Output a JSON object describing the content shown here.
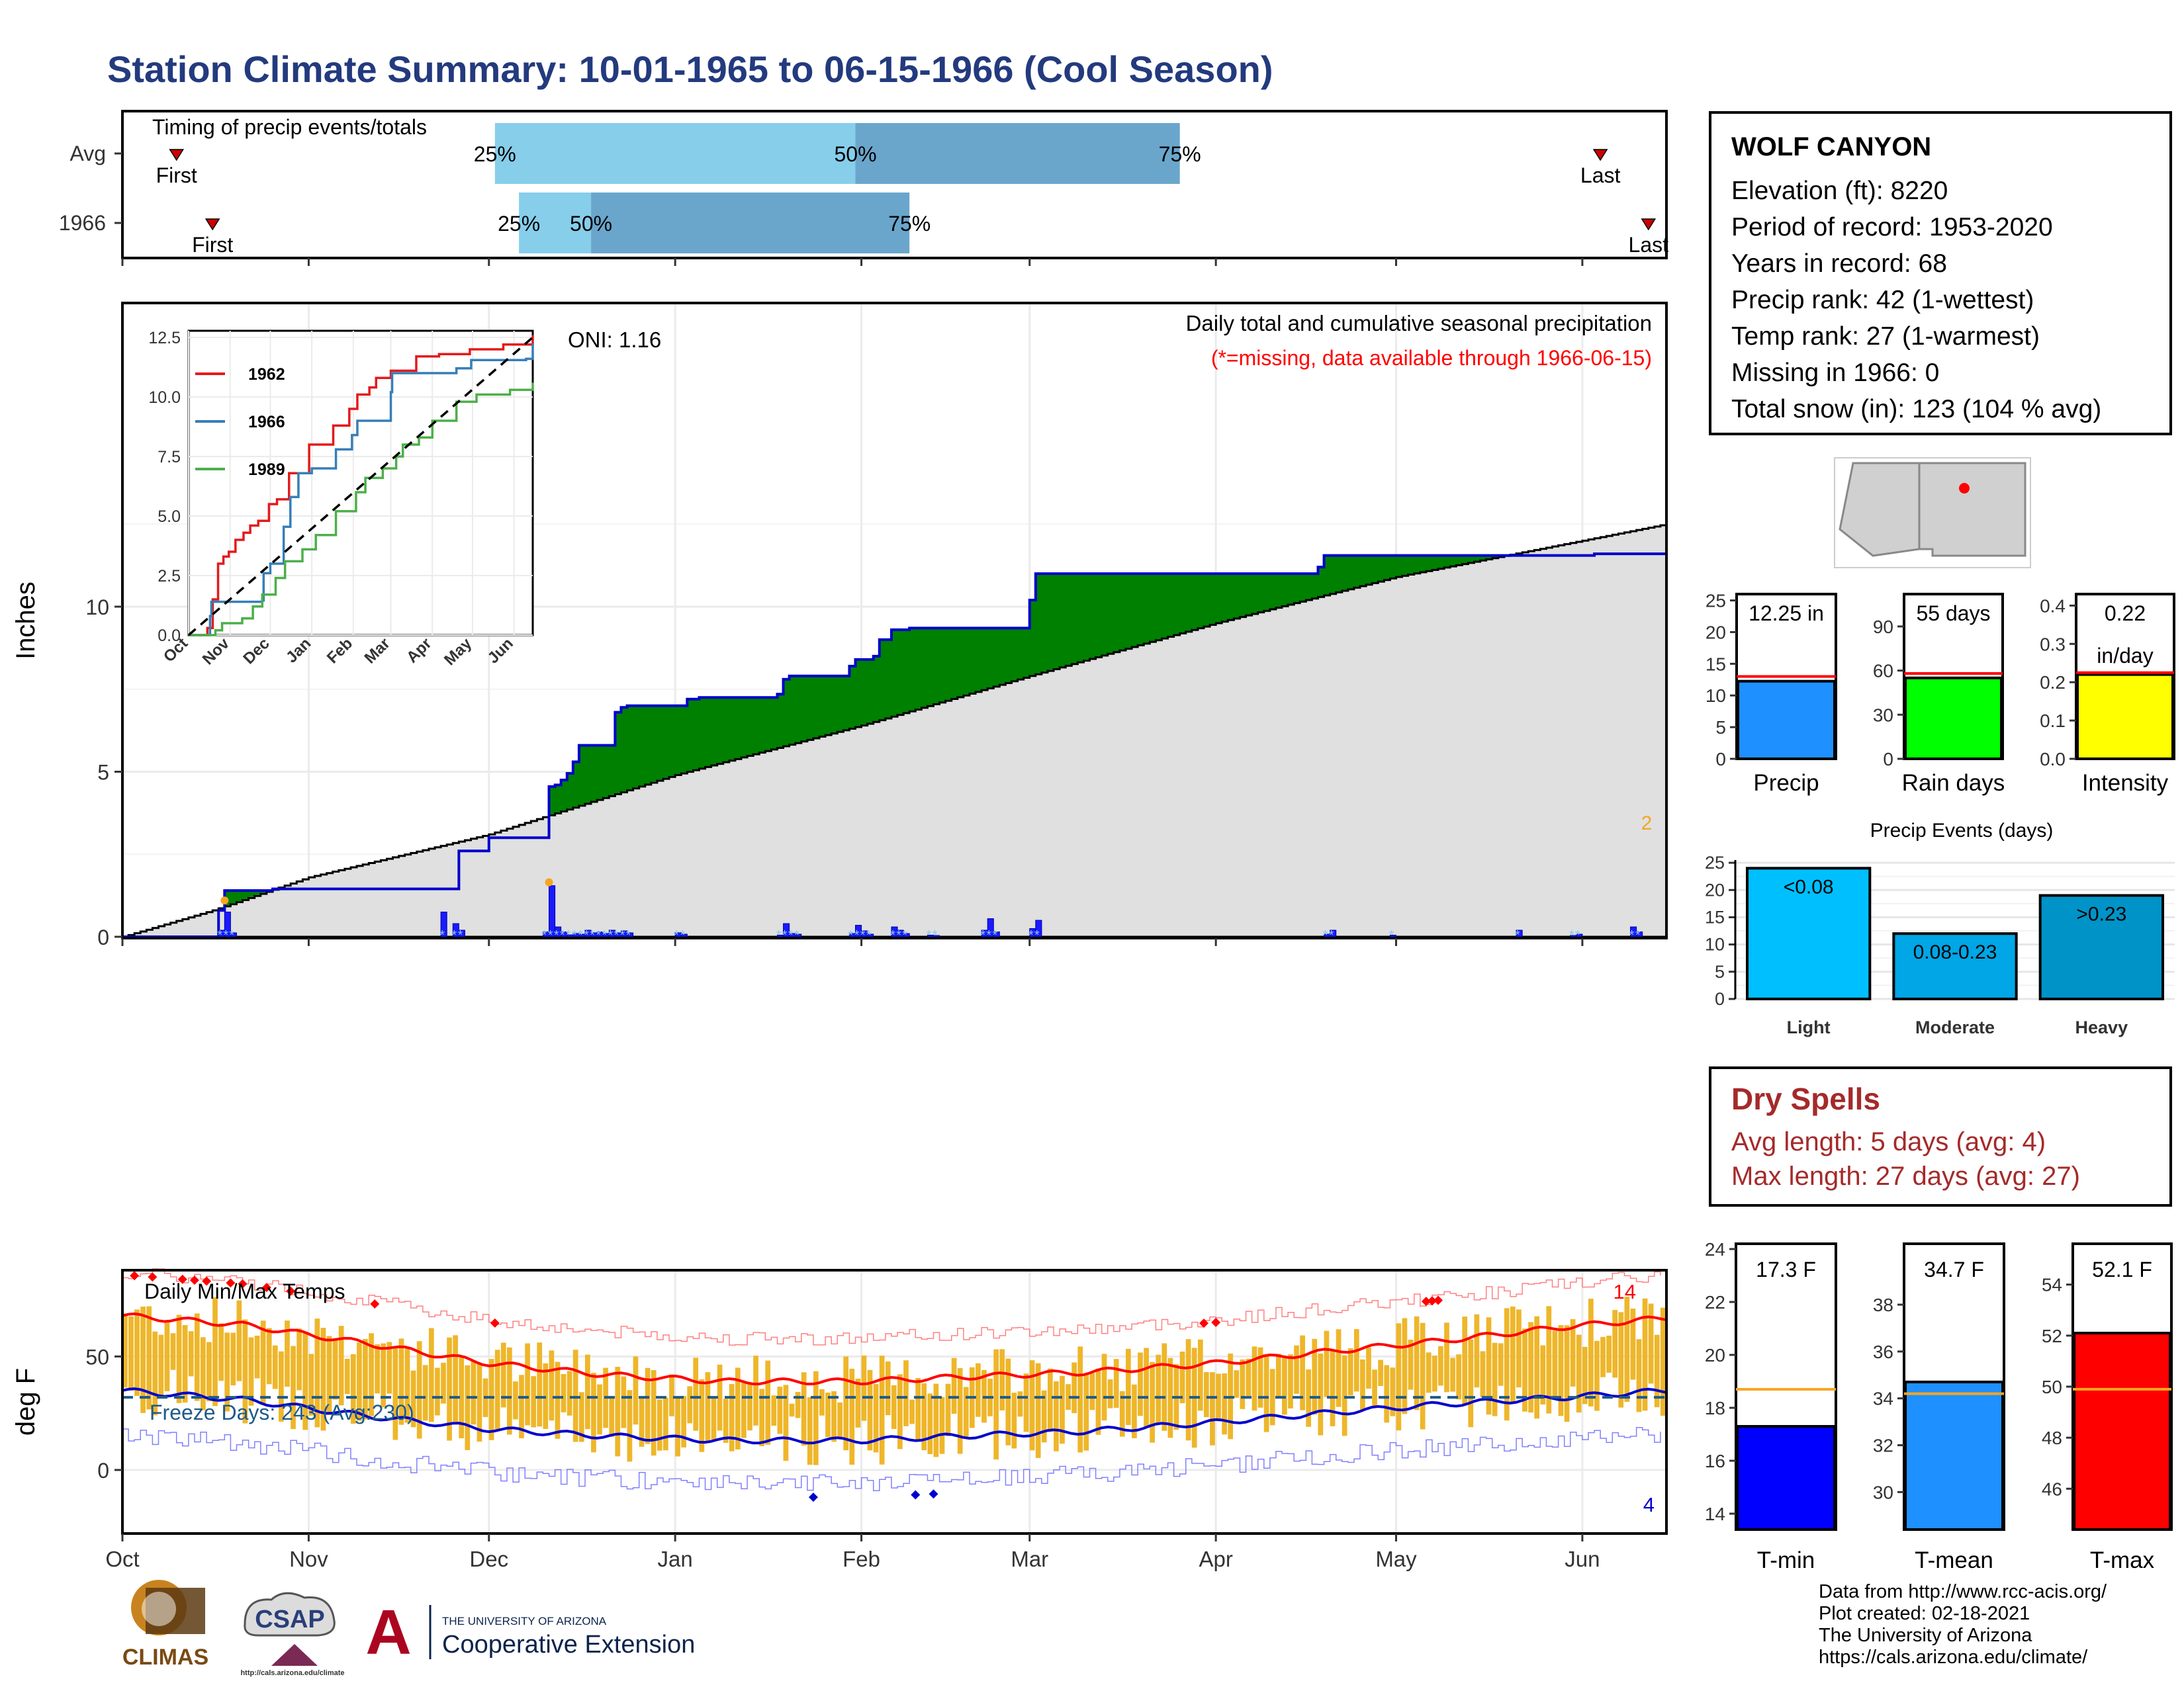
{
  "title": "Station Climate Summary: 10-01-1965 to 06-15-1966 (Cool Season)",
  "station": {
    "name": "WOLF CANYON",
    "lines": [
      "Elevation (ft): 8220",
      "Period of record: 1953-2020",
      "Years in record: 68",
      "Precip rank: 42 (1-wettest)",
      "Temp rank: 27 (1-warmest)",
      "Missing in 1966: 0",
      "Total snow (in): 123 (104 % avg)"
    ]
  },
  "dry_spells": {
    "title": "Dry Spells",
    "avg_length": "Avg length: 5 days (avg: 4)",
    "max_length": "Max length: 27 days (avg: 27)"
  },
  "credits": [
    "Data from http://www.rcc-acis.org/",
    "Plot created: 02-18-2021",
    "The University of Arizona",
    "https://cals.arizona.edu/climate/"
  ],
  "logos": {
    "climas": "CLIMAS",
    "csap": "CSAP",
    "csap_url": "http://cals.arizona.edu/climate",
    "ua_top": "THE UNIVERSITY OF ARIZONA",
    "ua_bottom": "Cooperative Extension"
  },
  "colors": {
    "title": "#233a7e",
    "above_avg": "#008000",
    "below_avg": "#7f5200",
    "cumulative_edge": "#0000cc",
    "average_fill": "#e0e0e0",
    "timing_light": "#87ceeb",
    "timing_dark": "#6aa6cc",
    "temp_bar": "#eeb62a",
    "tmax_line": "#ff0000",
    "tmin_line": "#0000cd"
  },
  "chart_data": [
    {
      "id": "timing",
      "type": "bar",
      "title": "Timing of precip events/totals",
      "rows": [
        {
          "label": "Avg",
          "first": "First",
          "last": "Last",
          "first_day": 9,
          "last_day": 246,
          "p25_day": 62,
          "p50_day": 122,
          "p75_day": 176
        },
        {
          "label": "1966",
          "first": "First",
          "last": "Last",
          "first_day": 15,
          "last_day": 254,
          "p25_day": 66,
          "p50_day": 78,
          "p75_day": 131
        }
      ],
      "percent_labels": [
        "25%",
        "50%",
        "75%"
      ],
      "days_axis": [
        0,
        257
      ]
    },
    {
      "id": "cumulative",
      "type": "area",
      "title": "Daily total and cumulative seasonal precipitation",
      "subtitle": "(*=missing, data available through 1966-06-15)",
      "ylabel": "Inches",
      "ylim": [
        0,
        12.5
      ],
      "yticks": [
        0,
        5,
        10
      ],
      "xticks": [
        "Oct",
        "Nov",
        "Dec",
        "Jan",
        "Feb",
        "Mar",
        "Apr",
        "May",
        "Jun"
      ],
      "xtick_days": [
        0,
        31,
        61,
        92,
        123,
        151,
        182,
        212,
        243
      ],
      "days_axis": [
        0,
        257
      ],
      "oni": "ONI: 1.16",
      "end_label": "2",
      "average_cumulative": {
        "days": [
          0,
          15,
          31,
          61,
          92,
          123,
          151,
          182,
          212,
          243,
          257
        ],
        "values": [
          0,
          0.8,
          1.8,
          3.1,
          4.9,
          6.4,
          7.9,
          9.5,
          10.9,
          12.0,
          12.5
        ]
      },
      "observed_cumulative": {
        "days": [
          0,
          15,
          16,
          17,
          25,
          55,
          56,
          61,
          70,
          71,
          72,
          73,
          74,
          75,
          76,
          80,
          82,
          83,
          84,
          92,
          94,
          95,
          96,
          105,
          109,
          110,
          111,
          115,
          121,
          122,
          123,
          125,
          126,
          128,
          131,
          134,
          145,
          151,
          152,
          176,
          199,
          200,
          211,
          241,
          245,
          257
        ],
        "values": [
          0,
          0,
          0.8,
          1.4,
          1.45,
          1.45,
          2.6,
          3.0,
          3.0,
          4.55,
          4.6,
          4.75,
          4.95,
          5.3,
          5.8,
          5.8,
          6.8,
          6.95,
          7.0,
          7.0,
          7.2,
          7.2,
          7.25,
          7.25,
          7.35,
          7.8,
          7.9,
          7.9,
          8.2,
          8.4,
          8.4,
          8.5,
          9.0,
          9.3,
          9.35,
          9.35,
          9.35,
          10.2,
          11.0,
          11.0,
          11.2,
          11.55,
          11.55,
          11.55,
          11.6,
          12.25
        ]
      },
      "daily_precip": {
        "days": [
          16,
          17,
          18,
          53,
          55,
          56,
          70,
          71,
          72,
          73,
          74,
          75,
          76,
          77,
          78,
          79,
          80,
          81,
          82,
          83,
          84,
          92,
          93,
          109,
          110,
          111,
          112,
          121,
          122,
          123,
          124,
          128,
          129,
          130,
          134,
          135,
          143,
          144,
          145,
          151,
          152,
          200,
          201,
          211,
          232,
          241,
          242,
          251,
          252
        ],
        "values": [
          0.2,
          0.75,
          0.12,
          0.75,
          0.4,
          0.2,
          0.15,
          1.55,
          0.3,
          0.15,
          0.06,
          0.1,
          0.08,
          0.2,
          0.12,
          0.15,
          0.1,
          0.2,
          0.12,
          0.18,
          0.12,
          0.12,
          0.08,
          0.05,
          0.4,
          0.1,
          0.08,
          0.1,
          0.35,
          0.18,
          0.08,
          0.3,
          0.2,
          0.1,
          0.05,
          0.04,
          0.2,
          0.55,
          0.15,
          0.25,
          0.5,
          0.08,
          0.2,
          0.05,
          0.2,
          0.04,
          0.08,
          0.3,
          0.15
        ]
      }
    },
    {
      "id": "inset",
      "type": "line",
      "yticks": [
        "0.0",
        "2.5",
        "5.0",
        "7.5",
        "10.0",
        "12.5"
      ],
      "ylim": [
        0,
        12.5
      ],
      "xticks": [
        "Oct",
        "Nov",
        "Dec",
        "Jan",
        "Feb",
        "Mar",
        "Apr",
        "May",
        "Jun"
      ],
      "series": [
        {
          "name": "1962",
          "color": "#e41a1c",
          "days": [
            0,
            14,
            18,
            22,
            26,
            30,
            35,
            41,
            46,
            52,
            60,
            66,
            75,
            90,
            108,
            120,
            126,
            135,
            140,
            151,
            170,
            187,
            210,
            235,
            257
          ],
          "values": [
            0,
            0.3,
            1.5,
            3.0,
            3.3,
            3.5,
            4.0,
            4.3,
            4.6,
            4.8,
            5.5,
            5.7,
            6.8,
            8.0,
            8.8,
            9.5,
            10.1,
            10.4,
            10.8,
            11.1,
            11.7,
            11.8,
            12.0,
            12.2,
            12.6
          ]
        },
        {
          "name": "1966",
          "color": "#377eb8",
          "days": [
            0,
            15,
            16,
            17,
            55,
            56,
            61,
            71,
            76,
            82,
            92,
            110,
            122,
            126,
            151,
            152,
            200,
            211,
            252,
            257
          ],
          "values": [
            0,
            0,
            0.8,
            1.4,
            1.45,
            2.6,
            3.0,
            4.55,
            5.8,
            6.8,
            7.0,
            7.8,
            8.4,
            9.0,
            10.2,
            11.0,
            11.2,
            11.55,
            11.6,
            12.25
          ]
        },
        {
          "name": "1989",
          "color": "#4daf4a",
          "days": [
            0,
            20,
            25,
            40,
            48,
            55,
            65,
            72,
            85,
            95,
            110,
            125,
            132,
            145,
            155,
            160,
            172,
            182,
            200,
            215,
            240,
            257
          ],
          "values": [
            0,
            0.2,
            0.5,
            0.7,
            1.2,
            1.7,
            2.4,
            3.1,
            3.6,
            4.2,
            5.2,
            6.0,
            6.6,
            7.0,
            7.5,
            8.0,
            8.3,
            9.0,
            9.8,
            10.1,
            10.3,
            10.6
          ]
        }
      ],
      "average_line": {
        "days": [
          0,
          257
        ],
        "values": [
          0,
          12.5
        ]
      }
    },
    {
      "id": "mini-precip",
      "type": "bar",
      "label": "Precip",
      "value": 12.25,
      "value_label": "12.25 in",
      "avg": 13.0,
      "yticks": [
        0,
        5,
        10,
        15,
        20,
        25
      ],
      "ylim": [
        0,
        26
      ],
      "color": "#1e90ff"
    },
    {
      "id": "mini-raindays",
      "type": "bar",
      "label": "Rain days",
      "value": 55,
      "value_label": "55 days",
      "avg": 58,
      "yticks": [
        0,
        30,
        60,
        90
      ],
      "ylim": [
        0,
        112
      ],
      "color": "#00ff00"
    },
    {
      "id": "mini-intensity",
      "type": "bar",
      "label": "Intensity",
      "value": 0.22,
      "value_label": "0.22",
      "value_unit": "in/day",
      "avg": 0.225,
      "yticks": [
        "0.0",
        "0.1",
        "0.2",
        "0.3",
        "0.4"
      ],
      "ylim": [
        0,
        0.43
      ],
      "color": "#ffff00"
    },
    {
      "id": "precip-events",
      "type": "bar",
      "title": "Precip Events (days)",
      "categories": [
        "Light",
        "Moderate",
        "Heavy"
      ],
      "values": [
        24,
        12,
        19
      ],
      "bar_labels": [
        "<0.08",
        "0.08-0.23",
        ">0.23"
      ],
      "colors": [
        "#00bfff",
        "#00a6e5",
        "#0093c8"
      ],
      "yticks": [
        0,
        5,
        10,
        15,
        20,
        25
      ],
      "ylim": [
        0,
        25.5
      ]
    },
    {
      "id": "temps",
      "type": "line",
      "title": "Daily Min/Max Temps",
      "ylabel": "deg F",
      "ylim": [
        -28,
        88
      ],
      "yticks": [
        0,
        50
      ],
      "xticks": [
        "Oct",
        "Nov",
        "Dec",
        "Jan",
        "Feb",
        "Mar",
        "Apr",
        "May",
        "Jun"
      ],
      "freeze_label": "Freeze Days: 243 (Avg:230)",
      "freeze_line": 32,
      "record_high_count": "14",
      "record_low_count": "4",
      "avg_tmax": {
        "days": [
          0,
          20,
          40,
          61,
          80,
          100,
          123,
          140,
          160,
          182,
          200,
          220,
          240,
          257
        ],
        "values": [
          68,
          64,
          56,
          47,
          42,
          39,
          39,
          41,
          43,
          47,
          52,
          57,
          63,
          67
        ]
      },
      "avg_tmin": {
        "days": [
          0,
          20,
          40,
          61,
          80,
          100,
          123,
          140,
          160,
          182,
          200,
          220,
          240,
          257
        ],
        "values": [
          35,
          31,
          24,
          18,
          15,
          13,
          13,
          15,
          17,
          21,
          25,
          29,
          32,
          35
        ]
      }
    },
    {
      "id": "mini-tmin",
      "type": "bar",
      "label": "T-min",
      "value": 17.3,
      "value_label": "17.3 F",
      "avg": 18.7,
      "yticks": [
        14,
        16,
        18,
        20,
        22,
        24
      ],
      "ylim": [
        13.4,
        24.2
      ],
      "color": "#0000ff"
    },
    {
      "id": "mini-tmean",
      "type": "bar",
      "label": "T-mean",
      "value": 34.7,
      "value_label": "34.7 F",
      "avg": 34.2,
      "yticks": [
        30,
        32,
        34,
        36,
        38
      ],
      "ylim": [
        28.4,
        40.6
      ],
      "color": "#1e90ff"
    },
    {
      "id": "mini-tmax",
      "type": "bar",
      "label": "T-max",
      "value": 52.1,
      "value_label": "52.1 F",
      "avg": 49.9,
      "yticks": [
        46,
        48,
        50,
        52,
        54
      ],
      "ylim": [
        44.4,
        55.6
      ],
      "color": "#ff0000"
    }
  ]
}
